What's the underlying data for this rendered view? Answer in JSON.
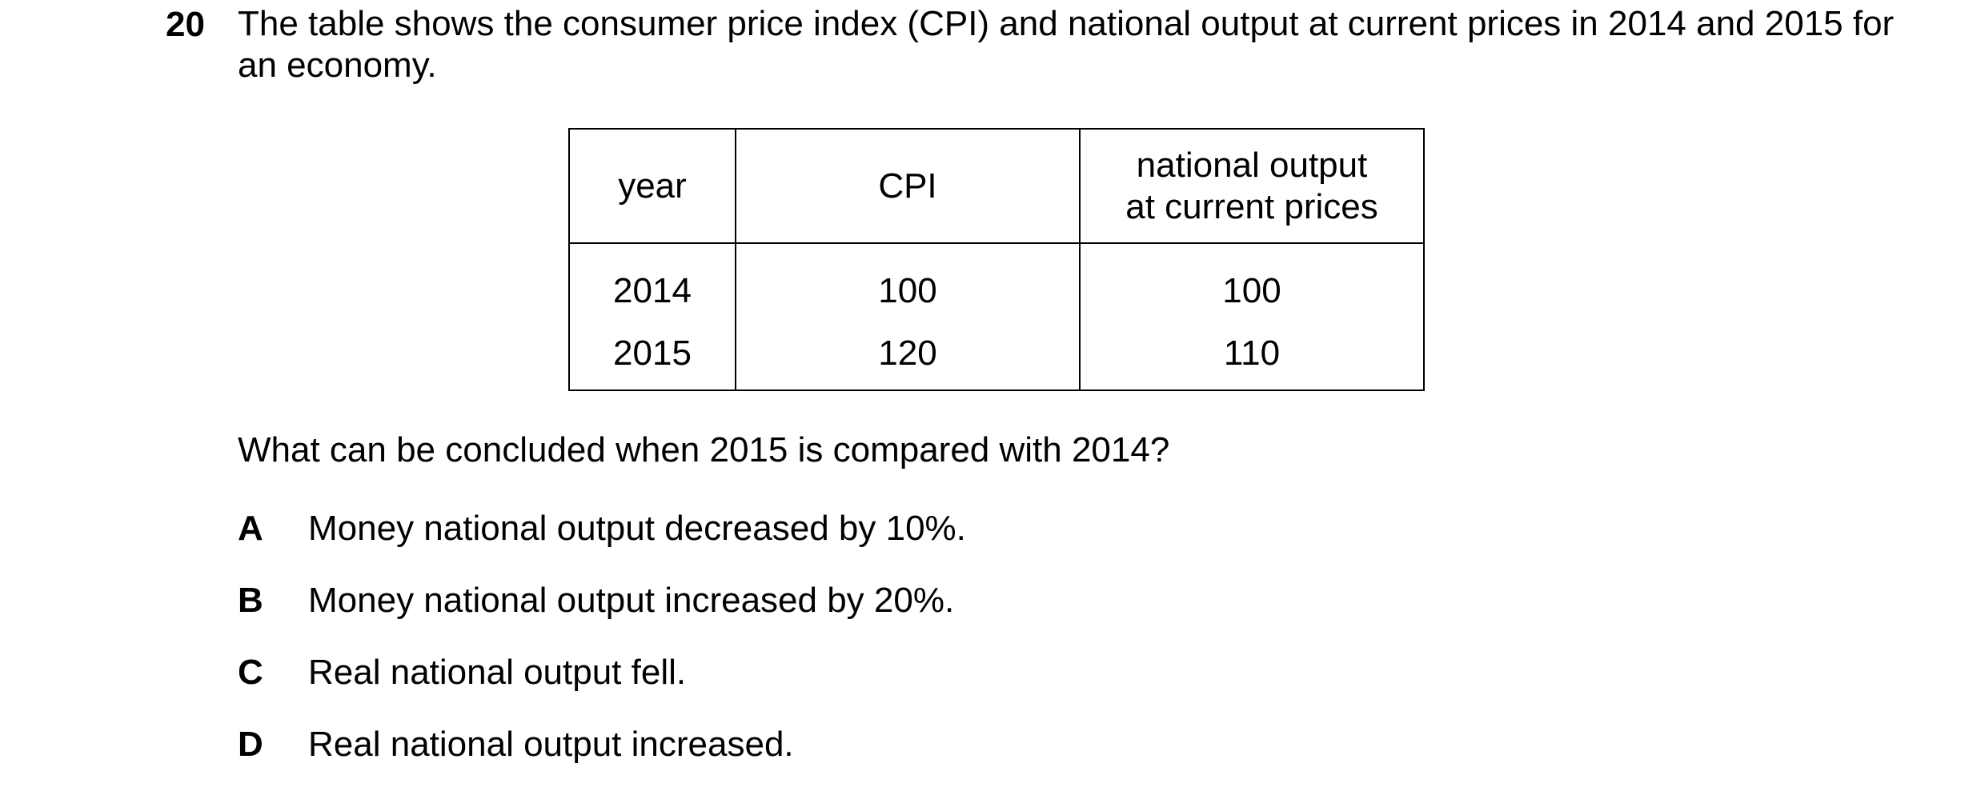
{
  "question": {
    "number": "20",
    "stem": "The table shows the consumer price index (CPI) and national output at current prices in 2014 and 2015 for an economy.",
    "prompt": "What can be concluded when 2015 is compared with 2014?"
  },
  "table": {
    "headers": {
      "year": "year",
      "cpi": "CPI",
      "output_line1": "national output",
      "output_line2": "at current prices"
    },
    "rows": [
      {
        "year": "2014",
        "cpi": "100",
        "output": "100"
      },
      {
        "year": "2015",
        "cpi": "120",
        "output": "110"
      }
    ]
  },
  "options": [
    {
      "letter": "A",
      "text": "Money national output decreased by 10%."
    },
    {
      "letter": "B",
      "text": "Money national output increased by 20%."
    },
    {
      "letter": "C",
      "text": "Real national output fell."
    },
    {
      "letter": "D",
      "text": "Real national output increased."
    }
  ]
}
